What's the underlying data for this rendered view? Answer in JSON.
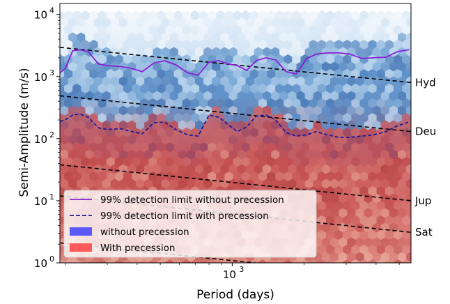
{
  "chart_data": {
    "type": "heatmap",
    "xlabel": "Period (days)",
    "ylabel": "Semi-Amplitude (m/s)",
    "x_scale": "log",
    "y_scale": "log",
    "xlim": [
      190,
      5600
    ],
    "ylim": [
      1,
      15000
    ],
    "x_tick_labels": [
      {
        "value": 1000,
        "base": "10",
        "exp": "3"
      }
    ],
    "y_tick_labels": [
      {
        "value": 1,
        "base": "10",
        "exp": "0"
      },
      {
        "value": 10,
        "base": "10",
        "exp": "1"
      },
      {
        "value": 100,
        "base": "10",
        "exp": "2"
      },
      {
        "value": 1000,
        "base": "10",
        "exp": "3"
      },
      {
        "value": 10000,
        "base": "10",
        "exp": "4"
      }
    ],
    "colors": {
      "without_precession": "#4a4aff",
      "with_precession": "#ff4a4a",
      "limit_without": "#8a1fd8",
      "limit_with": "#1a1a9a",
      "planet_lines": "#000000"
    },
    "series": [
      {
        "name": "99% detection limit without precession",
        "style": "solid",
        "x": [
          190,
          200,
          215,
          230,
          250,
          275,
          300,
          340,
          380,
          420,
          470,
          520,
          580,
          650,
          720,
          800,
          880,
          960,
          1050,
          1150,
          1260,
          1380,
          1520,
          1680,
          1850,
          2050,
          2250,
          2500,
          2800,
          3100,
          3500,
          3900,
          4400,
          4900,
          5500
        ],
        "y": [
          1150,
          1350,
          2600,
          2700,
          2500,
          1600,
          1500,
          1450,
          1350,
          1200,
          1650,
          1800,
          1550,
          1150,
          1050,
          1700,
          1800,
          1600,
          1500,
          1250,
          1800,
          2000,
          1850,
          1200,
          1100,
          1950,
          2300,
          2400,
          2400,
          2300,
          1950,
          2000,
          2050,
          2500,
          2700
        ]
      },
      {
        "name": "99% detection limit with precession",
        "style": "dashed",
        "x": [
          190,
          200,
          215,
          230,
          250,
          275,
          300,
          340,
          380,
          420,
          470,
          520,
          580,
          650,
          720,
          800,
          880,
          960,
          1050,
          1150,
          1260,
          1380,
          1520,
          1680,
          1850,
          2050,
          2250,
          2500,
          2800,
          3100,
          3500,
          3900,
          4400,
          4900,
          5500
        ],
        "y": [
          190,
          200,
          240,
          250,
          220,
          150,
          140,
          145,
          130,
          120,
          180,
          185,
          140,
          115,
          110,
          240,
          220,
          170,
          130,
          155,
          230,
          240,
          200,
          125,
          110,
          115,
          130,
          115,
          105,
          105,
          110,
          115,
          130,
          160,
          185
        ]
      },
      {
        "name": "without precession",
        "kind": "hexbin",
        "color": "#4a4aff"
      },
      {
        "name": "With precession",
        "kind": "hexbin",
        "color": "#ff4a4a"
      }
    ],
    "reference_lines": [
      {
        "label": "Hyd",
        "x": [
          190,
          5600
        ],
        "y": [
          2950,
          800
        ]
      },
      {
        "label": "Deu",
        "x": [
          190,
          5600
        ],
        "y": [
          490,
          130
        ]
      },
      {
        "label": "Jup",
        "x": [
          190,
          5600
        ],
        "y": [
          38,
          10
        ]
      },
      {
        "label": "Sat",
        "x": [
          190,
          5600
        ],
        "y": [
          12,
          3.1
        ]
      },
      {
        "label": "",
        "x": [
          190,
          5600
        ],
        "y": [
          2.1,
          0.55
        ]
      }
    ],
    "legend": {
      "placement": "lower-left",
      "entries": [
        {
          "label": "99% detection limit without precession",
          "marker": "solid-line",
          "color": "#8a1fd8"
        },
        {
          "label": "99% detection limit with precession",
          "marker": "dashed-line",
          "color": "#1a1a9a"
        },
        {
          "label": "without precession",
          "marker": "patch",
          "color": "#4a4aff"
        },
        {
          "label": "With precession",
          "marker": "patch",
          "color": "#ff4a4a"
        }
      ]
    }
  }
}
